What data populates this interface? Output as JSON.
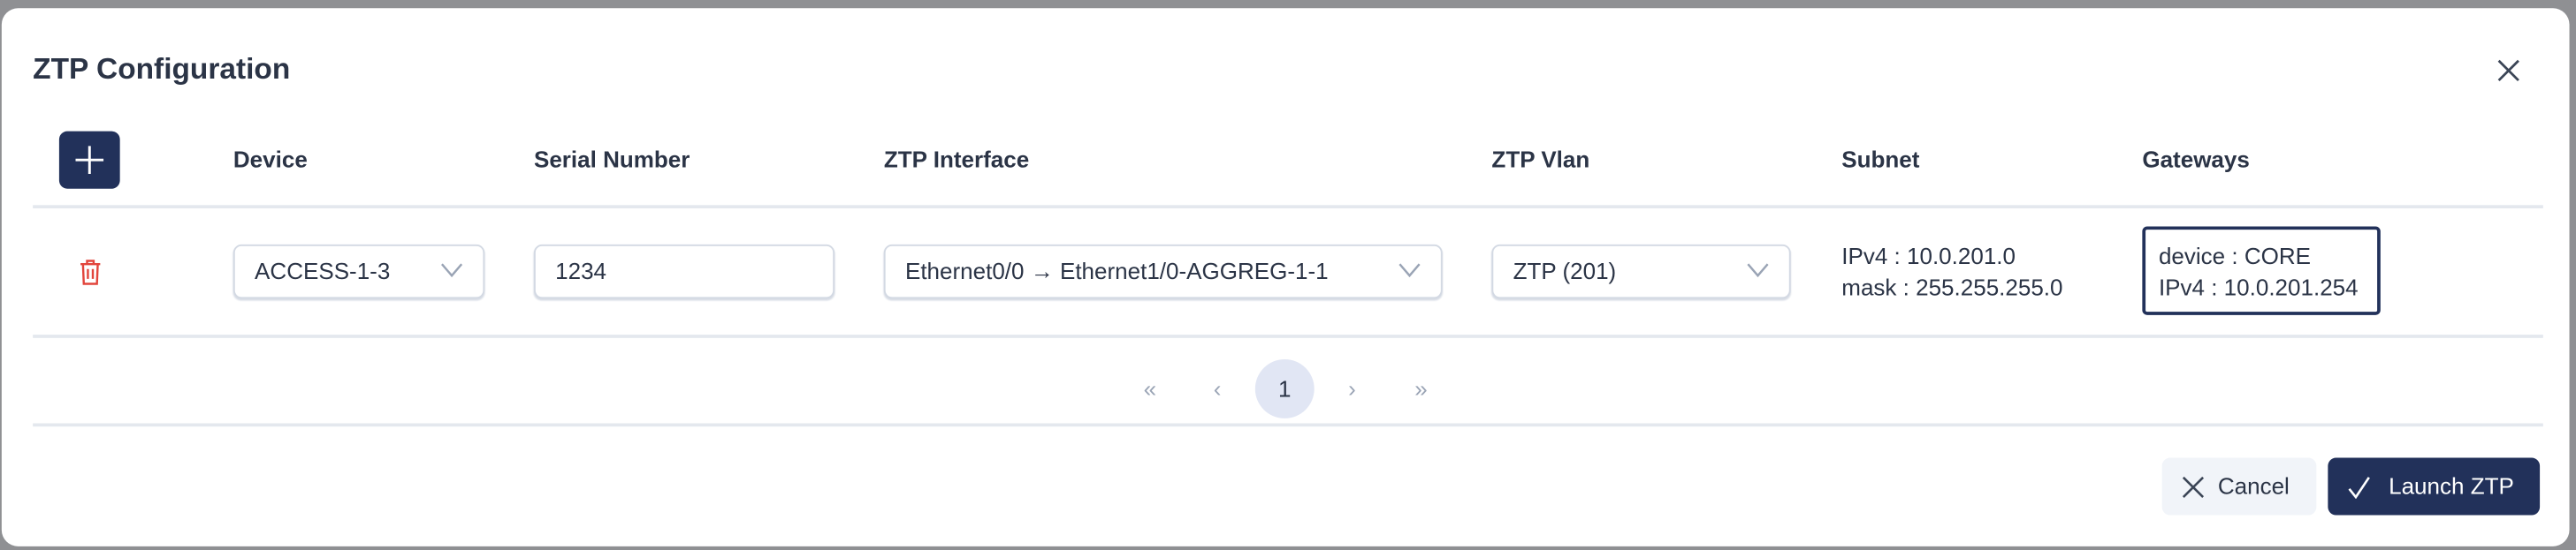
{
  "dialog": {
    "title": "ZTP Configuration"
  },
  "table": {
    "headers": {
      "device": "Device",
      "serial": "Serial Number",
      "interface": "ZTP Interface",
      "vlan": "ZTP Vlan",
      "subnet": "Subnet",
      "gateways": "Gateways"
    },
    "rows": [
      {
        "device": "ACCESS-1-3",
        "serial": "1234",
        "interface": "Ethernet0/0 → Ethernet1/0-AGGREG-1-1",
        "vlan": "ZTP (201)",
        "subnet_ipv4": "IPv4 : 10.0.201.0",
        "subnet_mask": "mask : 255.255.255.0",
        "gateway_device": "device : CORE",
        "gateway_ipv4": "IPv4 : 10.0.201.254"
      }
    ]
  },
  "pagination": {
    "first": "«",
    "prev": "‹",
    "current": "1",
    "next": "›",
    "last": "»"
  },
  "footer": {
    "cancel": "Cancel",
    "launch": "Launch ZTP"
  },
  "colors": {
    "primary": "#22315a",
    "danger": "#e2453c",
    "text": "#2b3446"
  }
}
